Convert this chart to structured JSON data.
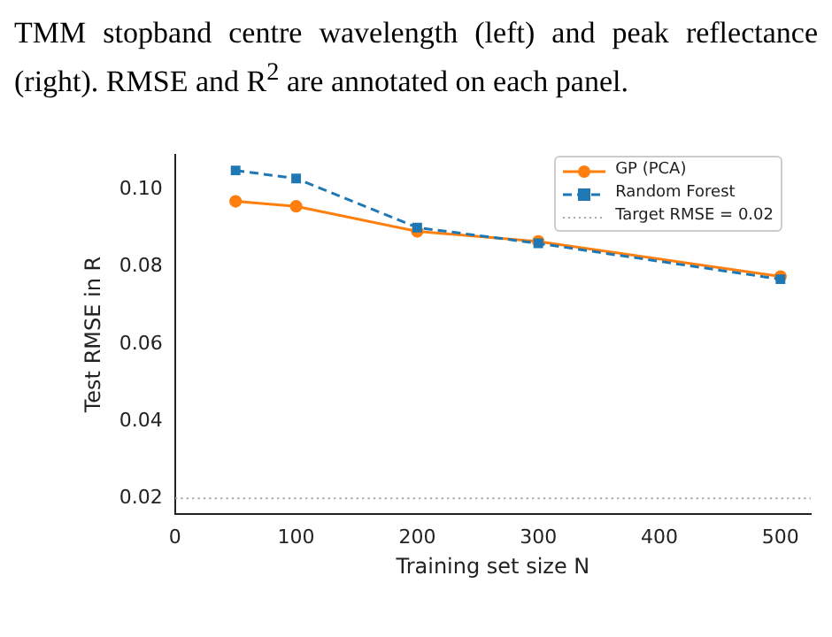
{
  "chart_data": {
    "type": "line",
    "annotations": [
      "TMM stopband centre wavelength (left) and peak reflectance (right). RMSE and R$^{2}$ are annotated on each panel."
    ],
    "xlabel": "Training set size N",
    "ylabel": "Test RMSE in R",
    "x": [
      50,
      100,
      200,
      300,
      500
    ],
    "series": [
      {
        "name": "GP (PCA)",
        "color": "#ff7f0e",
        "values": [
          0.097,
          0.0957,
          0.0892,
          0.0866,
          0.0775
        ],
        "marker": "circle",
        "line_style": "solid"
      },
      {
        "name": "Random Forest",
        "color": "#1f77b4",
        "values": [
          0.105,
          0.1029,
          0.0902,
          0.0861,
          0.0768
        ],
        "marker": "square",
        "line_style": "dashed"
      }
    ],
    "ref_lines": [
      {
        "axis": "y",
        "value": 0.02,
        "label": "Target RMSE = 0.02",
        "color": "#aaaaaa",
        "line_style": "dotted"
      }
    ],
    "xlim": [
      0,
      525
    ],
    "ylim": [
      0.016,
      0.109
    ],
    "xticks": [
      0,
      100,
      200,
      300,
      400,
      500
    ],
    "yticks": [
      0.02,
      0.04,
      0.06,
      0.08,
      {
        "value": 0.1,
        "label": "0.10"
      }
    ],
    "grid": false,
    "legend": "top right"
  }
}
